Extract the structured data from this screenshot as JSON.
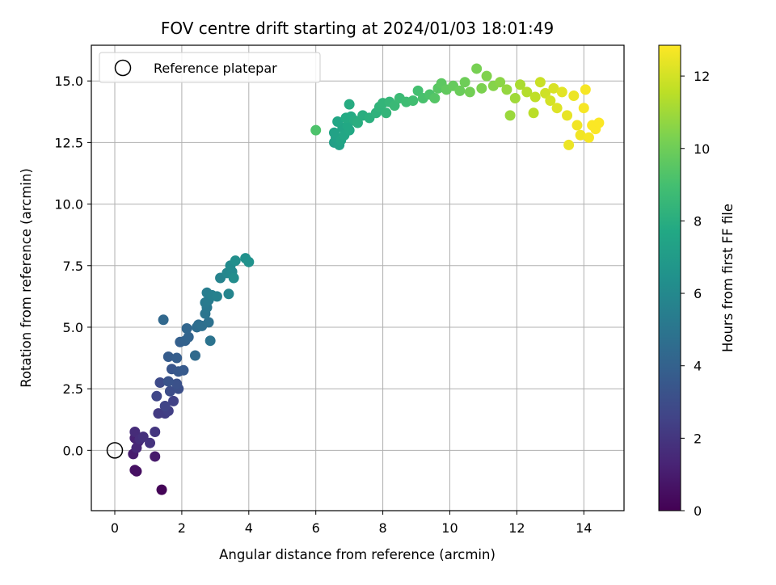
{
  "chart_data": {
    "type": "scatter",
    "title": "FOV centre drift starting at 2024/01/03 18:01:49",
    "xlabel": "Angular distance from reference (arcmin)",
    "ylabel": "Rotation from reference (arcmin)",
    "colorbar_label": "Hours from first FF file",
    "xlim": [
      -0.7,
      15.2
    ],
    "ylim": [
      -2.45,
      16.45
    ],
    "x_ticks": [
      0,
      2,
      4,
      6,
      8,
      10,
      12,
      14
    ],
    "x_tick_labels": [
      "0",
      "2",
      "4",
      "6",
      "8",
      "10",
      "12",
      "14"
    ],
    "y_ticks": [
      0.0,
      2.5,
      5.0,
      7.5,
      10.0,
      12.5,
      15.0
    ],
    "y_tick_labels": [
      "0.0",
      "2.5",
      "5.0",
      "7.5",
      "10.0",
      "12.5",
      "15.0"
    ],
    "colorbar_range": [
      0,
      12.85
    ],
    "colorbar_ticks": [
      0,
      2,
      4,
      6,
      8,
      10,
      12
    ],
    "colorbar_tick_labels": [
      "0",
      "2",
      "4",
      "6",
      "8",
      "10",
      "12"
    ],
    "colormap": "viridis",
    "grid": true,
    "legend": {
      "position": "top-left",
      "entries": [
        "Reference platepar"
      ]
    },
    "reference_point": {
      "x": 0,
      "y": 0,
      "label": "Reference platepar"
    },
    "series": [
      {
        "points": [
          [
            1.4,
            -1.6,
            0.1
          ],
          [
            0.65,
            -0.85,
            0.5
          ],
          [
            0.6,
            -0.8,
            0.6
          ],
          [
            1.2,
            -0.25,
            0.9
          ],
          [
            0.55,
            -0.15,
            1.0
          ],
          [
            0.6,
            0.5,
            1.2
          ],
          [
            0.7,
            0.35,
            1.3
          ],
          [
            0.65,
            0.1,
            1.4
          ],
          [
            0.6,
            0.75,
            1.6
          ],
          [
            0.75,
            0.45,
            1.7
          ],
          [
            0.85,
            0.55,
            1.8
          ],
          [
            1.05,
            0.3,
            1.9
          ],
          [
            1.2,
            0.75,
            2.0
          ],
          [
            1.3,
            1.5,
            2.2
          ],
          [
            1.5,
            1.5,
            2.3
          ],
          [
            1.6,
            1.6,
            2.4
          ],
          [
            1.75,
            2.0,
            2.5
          ],
          [
            1.5,
            1.8,
            2.6
          ],
          [
            1.25,
            2.2,
            2.7
          ],
          [
            1.35,
            2.75,
            2.9
          ],
          [
            1.65,
            2.4,
            3.0
          ],
          [
            1.9,
            2.5,
            3.1
          ],
          [
            1.85,
            2.7,
            3.2
          ],
          [
            1.6,
            2.8,
            3.3
          ],
          [
            1.7,
            3.3,
            3.4
          ],
          [
            1.9,
            3.2,
            3.5
          ],
          [
            2.05,
            3.25,
            3.6
          ],
          [
            1.6,
            3.8,
            3.7
          ],
          [
            1.85,
            3.75,
            3.8
          ],
          [
            1.95,
            4.4,
            3.9
          ],
          [
            2.1,
            4.45,
            4.0
          ],
          [
            2.2,
            4.6,
            4.1
          ],
          [
            2.15,
            4.95,
            4.2
          ],
          [
            1.45,
            5.3,
            4.3
          ],
          [
            2.4,
            3.85,
            4.4
          ],
          [
            2.45,
            5.0,
            4.5
          ],
          [
            2.5,
            5.1,
            4.6
          ],
          [
            2.6,
            5.05,
            4.7
          ],
          [
            2.8,
            5.2,
            4.8
          ],
          [
            2.85,
            4.45,
            4.9
          ],
          [
            2.7,
            5.55,
            5.0
          ],
          [
            2.75,
            5.8,
            5.1
          ],
          [
            2.7,
            6.0,
            5.2
          ],
          [
            2.8,
            6.1,
            5.3
          ],
          [
            2.75,
            6.4,
            5.4
          ],
          [
            2.9,
            6.3,
            5.5
          ],
          [
            3.05,
            6.25,
            5.6
          ],
          [
            3.15,
            7.0,
            5.7
          ],
          [
            3.4,
            6.35,
            5.8
          ],
          [
            3.35,
            7.2,
            5.9
          ],
          [
            3.5,
            7.25,
            6.0
          ],
          [
            3.45,
            7.5,
            6.1
          ],
          [
            3.55,
            7.0,
            6.2
          ],
          [
            3.6,
            7.7,
            6.3
          ],
          [
            3.9,
            7.8,
            6.4
          ],
          [
            4.0,
            7.65,
            6.5
          ],
          [
            6.0,
            13.0,
            9.2
          ],
          [
            6.55,
            12.5,
            7.2
          ],
          [
            6.6,
            12.7,
            7.3
          ],
          [
            6.7,
            12.4,
            7.3
          ],
          [
            6.55,
            12.9,
            7.4
          ],
          [
            6.75,
            12.6,
            7.5
          ],
          [
            6.8,
            13.1,
            7.5
          ],
          [
            6.85,
            12.8,
            7.6
          ],
          [
            6.65,
            13.35,
            7.6
          ],
          [
            6.95,
            13.2,
            7.7
          ],
          [
            7.0,
            13.0,
            7.7
          ],
          [
            6.9,
            13.5,
            7.8
          ],
          [
            7.05,
            13.55,
            7.8
          ],
          [
            7.15,
            13.4,
            7.9
          ],
          [
            7.0,
            14.05,
            7.9
          ],
          [
            7.25,
            13.3,
            8.0
          ],
          [
            7.4,
            13.6,
            8.0
          ],
          [
            7.6,
            13.5,
            8.1
          ],
          [
            7.8,
            13.7,
            8.2
          ],
          [
            7.9,
            13.95,
            8.3
          ],
          [
            8.1,
            13.7,
            8.4
          ],
          [
            8.0,
            14.1,
            8.4
          ],
          [
            8.2,
            14.15,
            8.5
          ],
          [
            8.35,
            14.0,
            8.6
          ],
          [
            8.5,
            14.3,
            8.7
          ],
          [
            8.7,
            14.15,
            8.8
          ],
          [
            8.9,
            14.2,
            8.9
          ],
          [
            9.05,
            14.6,
            9.0
          ],
          [
            9.2,
            14.3,
            9.1
          ],
          [
            9.4,
            14.45,
            9.2
          ],
          [
            9.55,
            14.3,
            9.4
          ],
          [
            9.65,
            14.7,
            9.5
          ],
          [
            9.75,
            14.9,
            9.6
          ],
          [
            9.9,
            14.65,
            9.7
          ],
          [
            10.1,
            14.8,
            9.8
          ],
          [
            10.3,
            14.6,
            9.9
          ],
          [
            10.45,
            14.95,
            10.0
          ],
          [
            10.6,
            14.55,
            10.1
          ],
          [
            10.8,
            15.5,
            10.2
          ],
          [
            10.95,
            14.7,
            10.3
          ],
          [
            11.1,
            15.2,
            10.4
          ],
          [
            11.3,
            14.8,
            10.5
          ],
          [
            11.5,
            14.95,
            10.6
          ],
          [
            11.7,
            14.65,
            10.8
          ],
          [
            11.8,
            13.6,
            10.9
          ],
          [
            11.95,
            14.3,
            11.0
          ],
          [
            12.1,
            14.85,
            11.2
          ],
          [
            12.3,
            14.55,
            11.4
          ],
          [
            12.5,
            13.7,
            11.5
          ],
          [
            12.55,
            14.35,
            11.6
          ],
          [
            12.7,
            14.95,
            11.8
          ],
          [
            12.85,
            14.5,
            11.9
          ],
          [
            13.0,
            14.2,
            12.0
          ],
          [
            13.1,
            14.7,
            12.1
          ],
          [
            13.2,
            13.9,
            12.2
          ],
          [
            13.35,
            14.55,
            12.3
          ],
          [
            13.5,
            13.6,
            12.4
          ],
          [
            13.55,
            12.4,
            12.5
          ],
          [
            13.7,
            14.4,
            12.5
          ],
          [
            13.8,
            13.2,
            12.6
          ],
          [
            13.9,
            12.8,
            12.6
          ],
          [
            14.0,
            13.9,
            12.7
          ],
          [
            14.05,
            14.65,
            12.7
          ],
          [
            14.15,
            12.7,
            12.7
          ],
          [
            14.25,
            13.2,
            12.8
          ],
          [
            14.35,
            13.05,
            12.8
          ],
          [
            14.45,
            13.3,
            12.8
          ]
        ]
      }
    ]
  }
}
